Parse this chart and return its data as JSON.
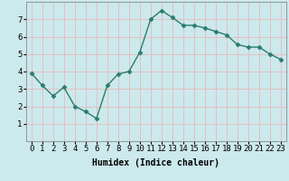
{
  "x": [
    0,
    1,
    2,
    3,
    4,
    5,
    6,
    7,
    8,
    9,
    10,
    11,
    12,
    13,
    14,
    15,
    16,
    17,
    18,
    19,
    20,
    21,
    22,
    23
  ],
  "y": [
    3.9,
    3.2,
    2.6,
    3.1,
    2.0,
    1.7,
    1.3,
    3.2,
    3.85,
    4.0,
    5.1,
    7.0,
    7.5,
    7.1,
    6.65,
    6.65,
    6.5,
    6.3,
    6.1,
    5.55,
    5.4,
    5.4,
    5.0,
    4.7
  ],
  "line_color": "#2a7d6e",
  "marker": "D",
  "marker_size": 2.5,
  "bg_color": "#cce9ed",
  "grid_color": "#e8b8b8",
  "xlabel": "Humidex (Indice chaleur)",
  "ylim": [
    0,
    8
  ],
  "xlim": [
    -0.5,
    23.5
  ],
  "yticks": [
    1,
    2,
    3,
    4,
    5,
    6,
    7
  ],
  "xticks": [
    0,
    1,
    2,
    3,
    4,
    5,
    6,
    7,
    8,
    9,
    10,
    11,
    12,
    13,
    14,
    15,
    16,
    17,
    18,
    19,
    20,
    21,
    22,
    23
  ],
  "xlabel_fontsize": 7,
  "tick_fontsize": 6.5,
  "line_width": 1.0
}
